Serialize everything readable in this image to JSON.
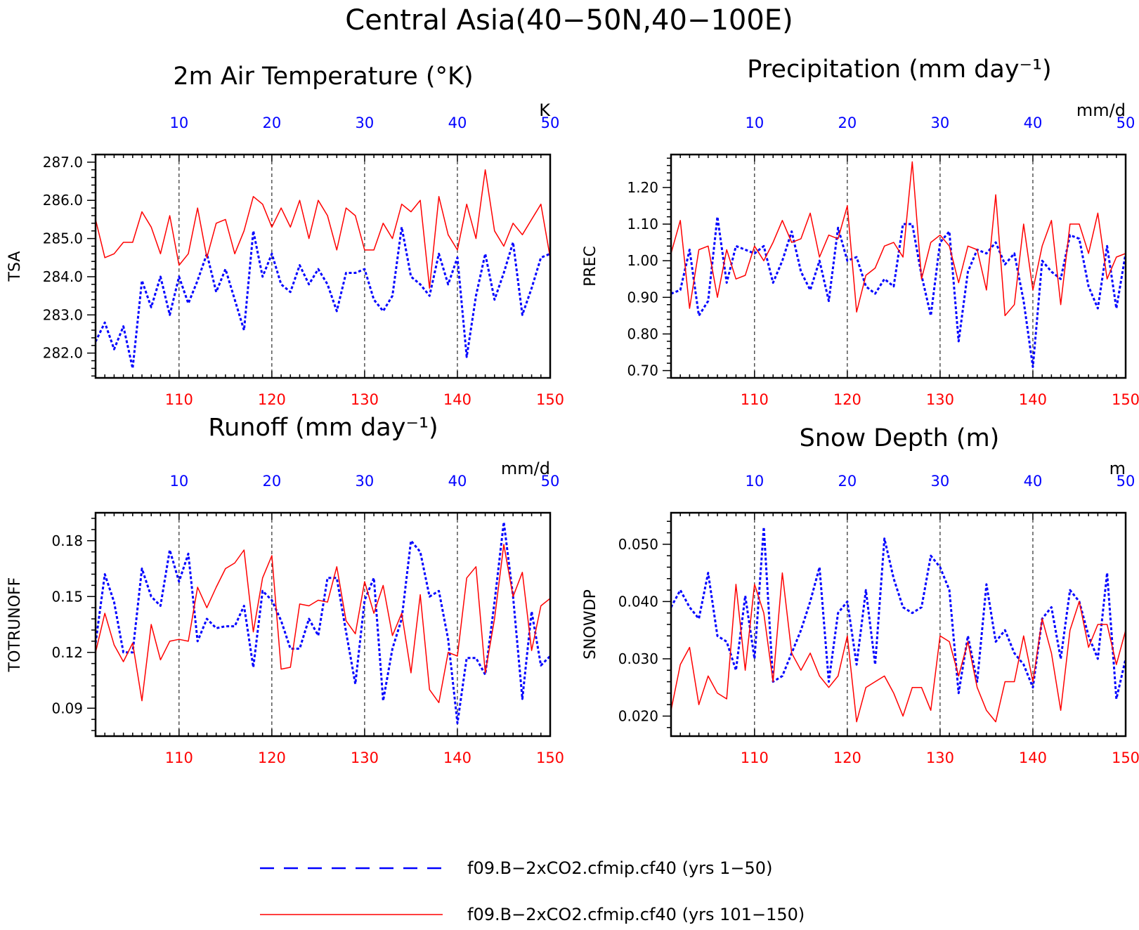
{
  "figure": {
    "title": "Central Asia(40−50N,40−100E)",
    "colors": {
      "run1": "#0000ff",
      "run2": "#ff0000"
    },
    "legend": [
      {
        "label": "f09.B−2xCO2.cfmip.cf40 (yrs 1−50)",
        "color": "#0000ff",
        "style": "dashed"
      },
      {
        "label": "f09.B−2xCO2.cfmip.cf40 (yrs 101−150)",
        "color": "#ff0000",
        "style": "solid"
      }
    ]
  },
  "chart_data": [
    {
      "type": "line",
      "title": "2m Air Temperature (°K)",
      "ylabel": "TSA",
      "unit": "K",
      "ylim": [
        281.35,
        287.2
      ],
      "yticks": [
        282.0,
        283.0,
        284.0,
        285.0,
        286.0,
        287.0
      ],
      "ytick_labels": [
        "282.0",
        "283.0",
        "284.0",
        "285.0",
        "286.0",
        "287.0"
      ],
      "top_axis": {
        "range": [
          1,
          50
        ],
        "ticks": [
          10,
          20,
          30,
          40,
          50
        ],
        "color": "#0000ff"
      },
      "bottom_axis": {
        "range": [
          101,
          150
        ],
        "ticks": [
          110,
          120,
          130,
          140,
          150
        ],
        "color": "#ff0000"
      },
      "grid": "dashed vertical at decades",
      "series": [
        {
          "name": "f09.B−2xCO2.cfmip.cf40 (yrs 1−50)",
          "axis": "top",
          "style": "dashed",
          "color": "#0000ff",
          "x": [
            1,
            2,
            3,
            4,
            5,
            6,
            7,
            8,
            9,
            10,
            11,
            12,
            13,
            14,
            15,
            16,
            17,
            18,
            19,
            20,
            21,
            22,
            23,
            24,
            25,
            26,
            27,
            28,
            29,
            30,
            31,
            32,
            33,
            34,
            35,
            36,
            37,
            38,
            39,
            40,
            41,
            42,
            43,
            44,
            45,
            46,
            47,
            48,
            49,
            50
          ],
          "values": [
            282.3,
            282.8,
            282.1,
            282.7,
            281.6,
            283.9,
            283.2,
            284.0,
            283.0,
            284.0,
            283.3,
            283.9,
            284.6,
            283.6,
            284.2,
            283.4,
            282.6,
            285.2,
            284.0,
            284.6,
            283.8,
            283.6,
            284.3,
            283.8,
            284.2,
            283.8,
            283.1,
            284.1,
            284.1,
            284.2,
            283.4,
            283.1,
            283.5,
            285.3,
            284.0,
            283.8,
            283.5,
            284.6,
            283.8,
            284.5,
            281.9,
            283.5,
            284.6,
            283.4,
            284.1,
            284.9,
            283.0,
            283.7,
            284.5,
            284.6
          ]
        },
        {
          "name": "f09.B−2xCO2.cfmip.cf40 (yrs 101−150)",
          "axis": "bottom",
          "style": "solid",
          "color": "#ff0000",
          "x": [
            101,
            102,
            103,
            104,
            105,
            106,
            107,
            108,
            109,
            110,
            111,
            112,
            113,
            114,
            115,
            116,
            117,
            118,
            119,
            120,
            121,
            122,
            123,
            124,
            125,
            126,
            127,
            128,
            129,
            130,
            131,
            132,
            133,
            134,
            135,
            136,
            137,
            138,
            139,
            140,
            141,
            142,
            143,
            144,
            145,
            146,
            147,
            148,
            149,
            150
          ],
          "values": [
            285.5,
            284.5,
            284.6,
            284.9,
            284.9,
            285.7,
            285.3,
            284.6,
            285.6,
            284.3,
            284.6,
            285.8,
            284.5,
            285.4,
            285.5,
            284.6,
            285.2,
            286.1,
            285.9,
            285.3,
            285.8,
            285.3,
            286.0,
            285.0,
            286.0,
            285.6,
            284.7,
            285.8,
            285.6,
            284.7,
            284.7,
            285.4,
            285.0,
            285.9,
            285.7,
            286.0,
            283.7,
            286.1,
            285.1,
            284.7,
            285.9,
            285.0,
            286.8,
            285.2,
            284.8,
            285.4,
            285.1,
            285.5,
            285.9,
            284.5
          ]
        }
      ]
    },
    {
      "type": "line",
      "title": "Precipitation (mm day⁻¹)",
      "ylabel": "PREC",
      "unit": "mm/d",
      "ylim": [
        0.68,
        1.29
      ],
      "yticks": [
        0.7,
        0.8,
        0.9,
        1.0,
        1.1,
        1.2
      ],
      "ytick_labels": [
        "0.70",
        "0.80",
        "0.90",
        "1.00",
        "1.10",
        "1.20"
      ],
      "top_axis": {
        "range": [
          1,
          50
        ],
        "ticks": [
          10,
          20,
          30,
          40,
          50
        ],
        "color": "#0000ff"
      },
      "bottom_axis": {
        "range": [
          101,
          150
        ],
        "ticks": [
          110,
          120,
          130,
          140,
          150
        ],
        "color": "#ff0000"
      },
      "grid": "dashed vertical at decades",
      "series": [
        {
          "name": "f09.B−2xCO2.cfmip.cf40 (yrs 1−50)",
          "axis": "top",
          "style": "dashed",
          "color": "#0000ff",
          "x": [
            1,
            2,
            3,
            4,
            5,
            6,
            7,
            8,
            9,
            10,
            11,
            12,
            13,
            14,
            15,
            16,
            17,
            18,
            19,
            20,
            21,
            22,
            23,
            24,
            25,
            26,
            27,
            28,
            29,
            30,
            31,
            32,
            33,
            34,
            35,
            36,
            37,
            38,
            39,
            40,
            41,
            42,
            43,
            44,
            45,
            46,
            47,
            48,
            49,
            50
          ],
          "values": [
            0.91,
            0.92,
            1.03,
            0.85,
            0.89,
            1.12,
            0.94,
            1.04,
            1.03,
            1.02,
            1.04,
            0.94,
            1.0,
            1.08,
            0.97,
            0.92,
            1.0,
            0.89,
            1.09,
            1.0,
            1.01,
            0.93,
            0.91,
            0.95,
            0.93,
            1.1,
            1.1,
            0.96,
            0.85,
            1.05,
            1.08,
            0.78,
            0.97,
            1.03,
            1.02,
            1.05,
            0.99,
            1.02,
            0.89,
            0.71,
            1.0,
            0.97,
            0.95,
            1.07,
            1.06,
            0.93,
            0.87,
            1.04,
            0.87,
            1.02
          ]
        },
        {
          "name": "f09.B−2xCO2.cfmip.cf40 (yrs 101−150)",
          "axis": "bottom",
          "style": "solid",
          "color": "#ff0000",
          "x": [
            101,
            102,
            103,
            104,
            105,
            106,
            107,
            108,
            109,
            110,
            111,
            112,
            113,
            114,
            115,
            116,
            117,
            118,
            119,
            120,
            121,
            122,
            123,
            124,
            125,
            126,
            127,
            128,
            129,
            130,
            131,
            132,
            133,
            134,
            135,
            136,
            137,
            138,
            139,
            140,
            141,
            142,
            143,
            144,
            145,
            146,
            147,
            148,
            149,
            150
          ],
          "values": [
            1.02,
            1.11,
            0.87,
            1.03,
            1.04,
            0.9,
            1.03,
            0.95,
            0.96,
            1.04,
            1.0,
            1.05,
            1.11,
            1.05,
            1.06,
            1.13,
            1.01,
            1.07,
            1.06,
            1.15,
            0.86,
            0.96,
            0.98,
            1.04,
            1.05,
            1.01,
            1.27,
            0.95,
            1.05,
            1.07,
            1.04,
            0.94,
            1.04,
            1.03,
            0.92,
            1.18,
            0.85,
            0.88,
            1.1,
            0.92,
            1.04,
            1.11,
            0.88,
            1.1,
            1.1,
            1.02,
            1.13,
            0.95,
            1.01,
            1.02
          ]
        }
      ]
    },
    {
      "type": "line",
      "title": "Runoff (mm day⁻¹)",
      "ylabel": "TOTRUNOFF",
      "unit": "mm/d",
      "ylim": [
        0.075,
        0.195
      ],
      "yticks": [
        0.09,
        0.12,
        0.15,
        0.18
      ],
      "ytick_labels": [
        "0.09",
        "0.12",
        "0.15",
        "0.18"
      ],
      "top_axis": {
        "range": [
          1,
          50
        ],
        "ticks": [
          10,
          20,
          30,
          40,
          50
        ],
        "color": "#0000ff"
      },
      "bottom_axis": {
        "range": [
          101,
          150
        ],
        "ticks": [
          110,
          120,
          130,
          140,
          150
        ],
        "color": "#ff0000"
      },
      "grid": "dashed vertical at decades",
      "series": [
        {
          "name": "f09.B−2xCO2.cfmip.cf40 (yrs 1−50)",
          "axis": "top",
          "style": "dashed",
          "color": "#0000ff",
          "x": [
            1,
            2,
            3,
            4,
            5,
            6,
            7,
            8,
            9,
            10,
            11,
            12,
            13,
            14,
            15,
            16,
            17,
            18,
            19,
            20,
            21,
            22,
            23,
            24,
            25,
            26,
            27,
            28,
            29,
            30,
            31,
            32,
            33,
            34,
            35,
            36,
            37,
            38,
            39,
            40,
            41,
            42,
            43,
            44,
            45,
            46,
            47,
            48,
            49,
            50
          ],
          "values": [
            0.125,
            0.162,
            0.147,
            0.12,
            0.12,
            0.165,
            0.15,
            0.145,
            0.175,
            0.158,
            0.173,
            0.126,
            0.138,
            0.133,
            0.134,
            0.134,
            0.145,
            0.112,
            0.153,
            0.148,
            0.137,
            0.122,
            0.122,
            0.138,
            0.129,
            0.16,
            0.16,
            0.131,
            0.103,
            0.148,
            0.16,
            0.094,
            0.122,
            0.138,
            0.18,
            0.174,
            0.15,
            0.153,
            0.127,
            0.082,
            0.117,
            0.117,
            0.108,
            0.147,
            0.19,
            0.15,
            0.095,
            0.142,
            0.113,
            0.118
          ]
        },
        {
          "name": "f09.B−2xCO2.cfmip.cf40 (yrs 101−150)",
          "axis": "bottom",
          "style": "solid",
          "color": "#ff0000",
          "x": [
            101,
            102,
            103,
            104,
            105,
            106,
            107,
            108,
            109,
            110,
            111,
            112,
            113,
            114,
            115,
            116,
            117,
            118,
            119,
            120,
            121,
            122,
            123,
            124,
            125,
            126,
            127,
            128,
            129,
            130,
            131,
            132,
            133,
            134,
            135,
            136,
            137,
            138,
            139,
            140,
            141,
            142,
            143,
            144,
            145,
            146,
            147,
            148,
            149,
            150
          ],
          "values": [
            0.12,
            0.141,
            0.124,
            0.115,
            0.125,
            0.094,
            0.135,
            0.116,
            0.126,
            0.127,
            0.126,
            0.155,
            0.144,
            0.155,
            0.165,
            0.168,
            0.175,
            0.131,
            0.16,
            0.172,
            0.111,
            0.112,
            0.146,
            0.145,
            0.148,
            0.147,
            0.166,
            0.137,
            0.13,
            0.158,
            0.141,
            0.156,
            0.129,
            0.141,
            0.109,
            0.151,
            0.1,
            0.093,
            0.12,
            0.118,
            0.16,
            0.166,
            0.109,
            0.138,
            0.178,
            0.15,
            0.163,
            0.121,
            0.145,
            0.149
          ]
        }
      ]
    },
    {
      "type": "line",
      "title": "Snow Depth (m)",
      "ylabel": "SNOWDP",
      "unit": "m",
      "ylim": [
        0.0165,
        0.0555
      ],
      "yticks": [
        0.02,
        0.03,
        0.04,
        0.05
      ],
      "ytick_labels": [
        "0.020",
        "0.030",
        "0.040",
        "0.050"
      ],
      "top_axis": {
        "range": [
          1,
          50
        ],
        "ticks": [
          10,
          20,
          30,
          40,
          50
        ],
        "color": "#0000ff"
      },
      "bottom_axis": {
        "range": [
          101,
          150
        ],
        "ticks": [
          110,
          120,
          130,
          140,
          150
        ],
        "color": "#ff0000"
      },
      "grid": "dashed vertical at decades",
      "series": [
        {
          "name": "f09.B−2xCO2.cfmip.cf40 (yrs 1−50)",
          "axis": "top",
          "style": "dashed",
          "color": "#0000ff",
          "x": [
            1,
            2,
            3,
            4,
            5,
            6,
            7,
            8,
            9,
            10,
            11,
            12,
            13,
            14,
            15,
            16,
            17,
            18,
            19,
            20,
            21,
            22,
            23,
            24,
            25,
            26,
            27,
            28,
            29,
            30,
            31,
            32,
            33,
            34,
            35,
            36,
            37,
            38,
            39,
            40,
            41,
            42,
            43,
            44,
            45,
            46,
            47,
            48,
            49,
            50
          ],
          "values": [
            0.039,
            0.042,
            0.039,
            0.037,
            0.045,
            0.034,
            0.033,
            0.028,
            0.041,
            0.03,
            0.053,
            0.026,
            0.027,
            0.031,
            0.035,
            0.04,
            0.046,
            0.026,
            0.038,
            0.04,
            0.029,
            0.042,
            0.029,
            0.051,
            0.044,
            0.039,
            0.038,
            0.039,
            0.048,
            0.046,
            0.042,
            0.024,
            0.034,
            0.026,
            0.043,
            0.033,
            0.035,
            0.031,
            0.029,
            0.025,
            0.037,
            0.039,
            0.03,
            0.042,
            0.04,
            0.034,
            0.03,
            0.045,
            0.023,
            0.03
          ]
        },
        {
          "name": "f09.B−2xCO2.cfmip.cf40 (yrs 101−150)",
          "axis": "bottom",
          "style": "solid",
          "color": "#ff0000",
          "x": [
            101,
            102,
            103,
            104,
            105,
            106,
            107,
            108,
            109,
            110,
            111,
            112,
            113,
            114,
            115,
            116,
            117,
            118,
            119,
            120,
            121,
            122,
            123,
            124,
            125,
            126,
            127,
            128,
            129,
            130,
            131,
            132,
            133,
            134,
            135,
            136,
            137,
            138,
            139,
            140,
            141,
            142,
            143,
            144,
            145,
            146,
            147,
            148,
            149,
            150
          ],
          "values": [
            0.021,
            0.029,
            0.032,
            0.022,
            0.027,
            0.024,
            0.023,
            0.043,
            0.028,
            0.043,
            0.038,
            0.026,
            0.045,
            0.031,
            0.028,
            0.031,
            0.027,
            0.025,
            0.027,
            0.034,
            0.019,
            0.025,
            0.026,
            0.027,
            0.024,
            0.02,
            0.025,
            0.025,
            0.021,
            0.034,
            0.033,
            0.027,
            0.033,
            0.025,
            0.021,
            0.019,
            0.026,
            0.026,
            0.034,
            0.026,
            0.037,
            0.031,
            0.021,
            0.035,
            0.04,
            0.032,
            0.036,
            0.036,
            0.029,
            0.035
          ]
        }
      ]
    }
  ]
}
